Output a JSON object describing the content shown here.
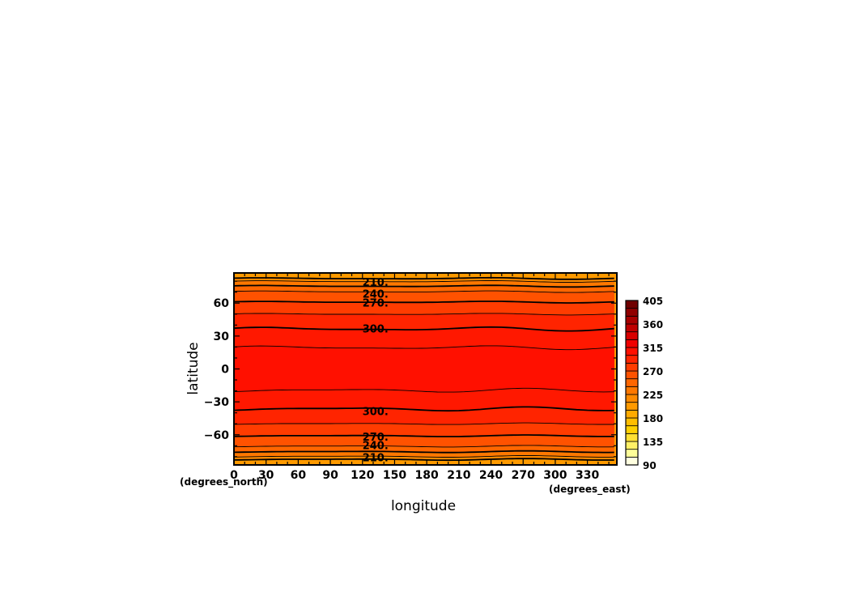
{
  "chart_data": {
    "type": "heatmap",
    "subtype": "filled-contour",
    "xlabel": "longitude",
    "ylabel": "latitude",
    "x_units": "(degrees_east)",
    "y_units": "(degrees_north)",
    "xlim": [
      0,
      357.5
    ],
    "ylim": [
      -87.5,
      87.5
    ],
    "x_ticks": [
      0,
      30,
      60,
      90,
      120,
      150,
      180,
      210,
      240,
      270,
      300,
      330
    ],
    "x_tick_labels": [
      "0",
      "30",
      "60",
      "90",
      "120",
      "150",
      "180",
      "210",
      "240",
      "270",
      "300",
      "330"
    ],
    "y_ticks": [
      60,
      30,
      0,
      -30,
      -60
    ],
    "y_tick_labels": [
      "60",
      "30",
      "0",
      "−30",
      "−60"
    ],
    "colorbar": {
      "levels": [
        90,
        105,
        120,
        135,
        150,
        165,
        180,
        195,
        210,
        225,
        240,
        255,
        270,
        285,
        300,
        315,
        330,
        345,
        360,
        375,
        390,
        405
      ],
      "labels": [
        "90",
        "135",
        "180",
        "225",
        "270",
        "315",
        "360",
        "405"
      ],
      "label_values": [
        90,
        135,
        180,
        225,
        270,
        315,
        360,
        405
      ],
      "colors": [
        "#ffffe0",
        "#ffff99",
        "#fff066",
        "#ffe033",
        "#ffd000",
        "#ffbe00",
        "#ffab00",
        "#ff9a00",
        "#ff8a00",
        "#ff7800",
        "#ff6600",
        "#ff5200",
        "#ff3c00",
        "#ff2400",
        "#ff1000",
        "#f00000",
        "#d80000",
        "#c00000",
        "#a80000",
        "#900000",
        "#700000"
      ]
    },
    "contours": [
      {
        "level": 210,
        "label": "210.",
        "lat": [
          82.5,
          -82.5
        ],
        "bold": true
      },
      {
        "level": 225,
        "lat": [
          79.8,
          -79.8
        ],
        "bold": false
      },
      {
        "level": 240,
        "label": "240.",
        "lat": [
          75.5,
          -75.5
        ],
        "bold": true
      },
      {
        "level": 255,
        "lat": [
          70.5,
          -70.5
        ],
        "bold": false
      },
      {
        "level": 270,
        "label": "270.",
        "lat": [
          61.0,
          -61.0
        ],
        "bold": true
      },
      {
        "level": 285,
        "lat": [
          50.0,
          -50.0
        ],
        "bold": false
      },
      {
        "level": 300,
        "label": "300.",
        "lat": [
          36.5,
          -36.5
        ],
        "bold": true
      },
      {
        "level": 315,
        "lat": [
          19.5,
          -19.5
        ],
        "bold": false
      }
    ],
    "labeled_contours": [
      {
        "label": "210.",
        "lon": 120,
        "lat": 79.5
      },
      {
        "label": "240.",
        "lon": 120,
        "lat": 68.5
      },
      {
        "label": "270.",
        "lon": 120,
        "lat": 60.5
      },
      {
        "label": "300.",
        "lon": 120,
        "lat": 37
      },
      {
        "label": "300.",
        "lon": 120,
        "lat": -38.5
      },
      {
        "label": "270.",
        "lon": 120,
        "lat": -61.5
      },
      {
        "label": "240.",
        "lon": 120,
        "lat": -69.5
      },
      {
        "label": "210.",
        "lon": 120,
        "lat": -80.5
      }
    ],
    "band_colors": {
      "lt210": "#ff9a00",
      "210_225": "#ff8a00",
      "225_240": "#ff7800",
      "240_255": "#ff6600",
      "255_270": "#ff5200",
      "270_285": "#ff3c00",
      "285_300": "#ff2400",
      "300_315": "#ff1800",
      "gt315": "#ff1000"
    },
    "grid": false,
    "legend": "colorbar-right"
  }
}
